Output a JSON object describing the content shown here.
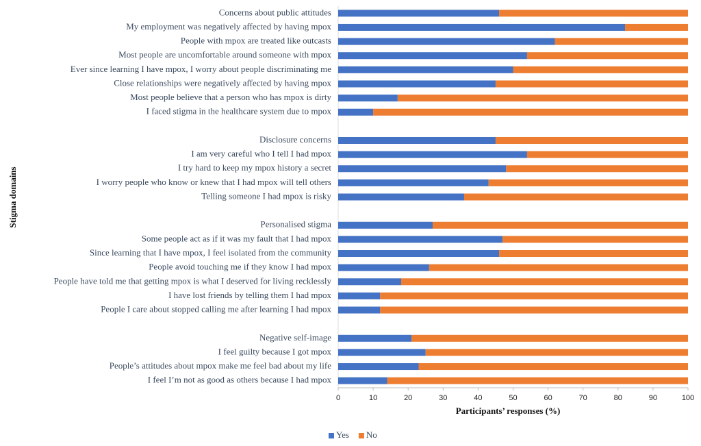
{
  "chart_data": {
    "type": "stacked-barh",
    "xlabel": "Participants’ responses (%)",
    "ylabel": "Stigma domains",
    "categories": [
      "Concerns about public attitudes",
      "My employment was negatively affected by having mpox",
      "People with mpox are treated like outcasts",
      "Most people are uncomfortable around someone with mpox",
      "Ever since learning I have mpox, I worry about people discriminating me",
      "Close relationships were negatively affected by having mpox",
      "Most people believe that a person who has mpox is dirty",
      "I faced stigma in the healthcare system due to mpox",
      null,
      "Disclosure concerns",
      "I am very careful who I tell I had mpox",
      "I try hard to keep my mpox history a secret",
      "I worry people who know or knew that I had mpox will tell others",
      "Telling someone I had mpox is risky",
      null,
      "Personalised stigma",
      "Some people act as if it was my fault that I had mpox",
      "Since learning that I have mpox, I feel isolated from the community",
      "People avoid touching me if they know I had mpox",
      "People have told me that getting mpox is what I deserved for living recklessly",
      "I have lost friends by telling them I had mpox",
      "People I care about stopped calling me after learning I had mpox",
      null,
      "Negative self-image",
      "I feel guilty because I got mpox",
      "People’s attitudes about mpox make me feel bad about my life",
      "I feel I’m not as good as others because I had mpox"
    ],
    "series": [
      {
        "name": "Yes",
        "color": "#4472c4",
        "values": [
          46,
          82,
          62,
          54,
          50,
          45,
          17,
          10,
          null,
          45,
          54,
          48,
          43,
          36,
          null,
          27,
          47,
          46,
          26,
          18,
          12,
          12,
          null,
          21,
          25,
          23,
          14
        ]
      },
      {
        "name": "No",
        "color": "#ed7d31",
        "values": [
          54,
          18,
          38,
          46,
          50,
          55,
          83,
          90,
          null,
          55,
          46,
          52,
          57,
          64,
          null,
          73,
          53,
          54,
          74,
          82,
          88,
          88,
          null,
          79,
          75,
          77,
          86
        ]
      }
    ],
    "xlim": [
      0,
      100
    ],
    "xticks": [
      0,
      10,
      20,
      30,
      40,
      50,
      60,
      70,
      80,
      90,
      100
    ],
    "legend": "bottom"
  }
}
